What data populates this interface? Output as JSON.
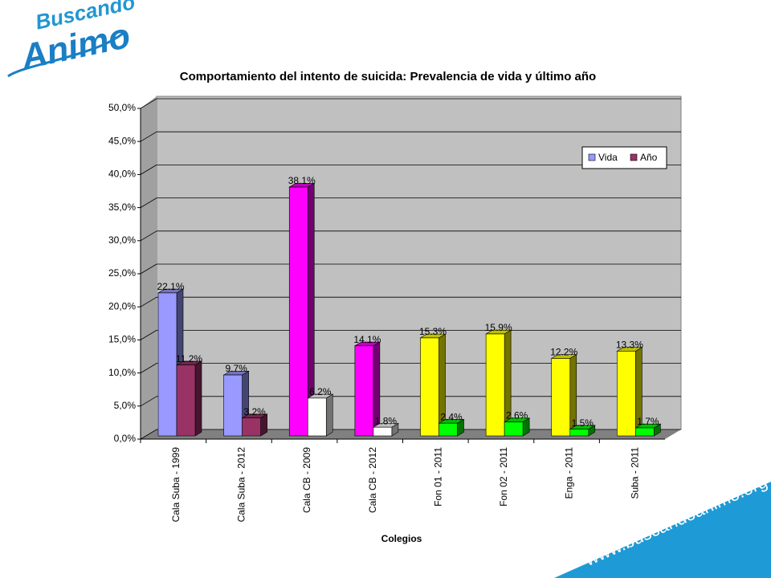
{
  "brand": {
    "top": "Buscando",
    "main": "Animo",
    "url": "www.buscandoanimo.org"
  },
  "chart_data": {
    "type": "bar",
    "title": "Comportamiento del intento de suicida: Prevalencia de vida y último año",
    "x_label": "Colegios",
    "categories": [
      "Cala Suba - 1999",
      "Cala Suba - 2012",
      "Cala CB - 2009",
      "Cala CB - 2012",
      "Fon 01 - 2011",
      "Fon 02 - 2011",
      "Enga - 2011",
      "Suba - 2011"
    ],
    "series": [
      {
        "name": "Vida",
        "color": "#9999ff",
        "colors": [
          "#9999ff",
          "#9999ff",
          "#ff00ff",
          "#ff00ff",
          "#ffff00",
          "#ffff00",
          "#ffff00",
          "#ffff00"
        ],
        "values": [
          22.1,
          9.7,
          38.1,
          14.1,
          15.3,
          15.9,
          12.2,
          13.3
        ],
        "value_labels": [
          "22.1%",
          "9.7%",
          "38.1%",
          "14.1%",
          "15.3%",
          "15.9%",
          "12.2%",
          "13.3%"
        ]
      },
      {
        "name": "Año",
        "color": "#993366",
        "colors": [
          "#993366",
          "#993366",
          "#ffffff",
          "#ffffff",
          "#00ff00",
          "#00ff00",
          "#00ff00",
          "#00ff00"
        ],
        "values": [
          11.2,
          3.2,
          6.2,
          1.8,
          2.4,
          2.6,
          1.5,
          1.7
        ],
        "value_labels": [
          "11.2%",
          "3.2%",
          "6.2%",
          "1.8%",
          "2.4%",
          "2.6%",
          "1.5%",
          "1.7%"
        ]
      }
    ],
    "ylim": [
      0,
      50
    ],
    "yticks": [
      {
        "value": 0,
        "label": "0,0%"
      },
      {
        "value": 5,
        "label": "5,0%"
      },
      {
        "value": 10,
        "label": "10,0%"
      },
      {
        "value": 15,
        "label": "15,0%"
      },
      {
        "value": 20,
        "label": "20,0%"
      },
      {
        "value": 25,
        "label": "25,0%"
      },
      {
        "value": 30,
        "label": "30,0%"
      },
      {
        "value": 35,
        "label": "35,0%"
      },
      {
        "value": 40,
        "label": "40,0%"
      },
      {
        "value": 45,
        "label": "45,0%"
      },
      {
        "value": 50,
        "label": "50,0%"
      }
    ],
    "grid": true,
    "legend": "upper right"
  }
}
